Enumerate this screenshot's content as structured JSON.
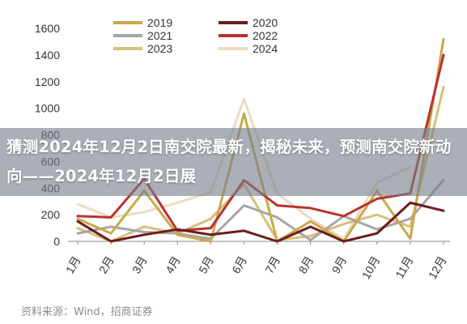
{
  "chart_data": {
    "type": "line",
    "title": "",
    "xlabel": "",
    "ylabel": "",
    "ylim": [
      0,
      1600
    ],
    "yticks": [
      "0",
      "200",
      "400",
      "600",
      "800",
      "1000",
      "1200",
      "1400",
      "1600"
    ],
    "categories": [
      "1月",
      "2月",
      "3月",
      "4月",
      "5月",
      "6月",
      "7月",
      "8月",
      "9月",
      "10月",
      "11月",
      "12月"
    ],
    "grid": false,
    "legend_position": "top",
    "series": [
      {
        "name": "2019",
        "color": "#c9a94a",
        "values": [
          170,
          60,
          380,
          50,
          0,
          960,
          0,
          150,
          0,
          380,
          20,
          1520
        ]
      },
      {
        "name": "2020",
        "color": "#6b1c1c",
        "values": [
          150,
          0,
          50,
          90,
          50,
          80,
          0,
          110,
          0,
          60,
          290,
          230
        ]
      },
      {
        "name": "2021",
        "color": "#a6a6a6",
        "values": [
          60,
          110,
          70,
          60,
          20,
          270,
          180,
          10,
          190,
          90,
          170,
          460
        ]
      },
      {
        "name": "2022",
        "color": "#b8322e",
        "values": [
          190,
          180,
          470,
          80,
          100,
          460,
          270,
          250,
          190,
          320,
          360,
          1400
        ]
      },
      {
        "name": "2023",
        "color": "#d8c07a",
        "values": [
          100,
          0,
          110,
          60,
          170,
          430,
          10,
          40,
          130,
          200,
          110,
          1160
        ]
      },
      {
        "name": "2024",
        "color": "#ecdcbf",
        "values": [
          280,
          180,
          220,
          290,
          370,
          1070,
          360,
          170,
          20,
          440,
          560,
          null
        ]
      }
    ]
  },
  "overlay": {
    "title": "猜测2024年12月2日南交院最新，揭秘未来，预测南交院新动向——2024年12月2日展"
  },
  "source": {
    "text": "资料来源：Wind，招商证券"
  }
}
